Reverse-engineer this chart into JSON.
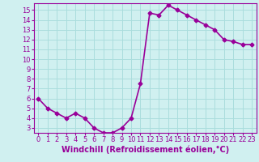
{
  "x": [
    0,
    1,
    2,
    3,
    4,
    5,
    6,
    7,
    8,
    9,
    10,
    11,
    12,
    13,
    14,
    15,
    16,
    17,
    18,
    19,
    20,
    21,
    22,
    23
  ],
  "y": [
    6.0,
    5.0,
    4.5,
    4.0,
    4.5,
    4.0,
    3.0,
    2.5,
    2.5,
    3.0,
    4.0,
    7.5,
    14.7,
    14.5,
    15.5,
    15.0,
    14.5,
    14.0,
    13.5,
    13.0,
    12.0,
    11.8,
    11.5,
    11.5
  ],
  "line_color": "#990099",
  "marker": "D",
  "marker_size": 2.5,
  "bg_color": "#d0f0f0",
  "grid_color": "#aadddd",
  "xlabel": "Windchill (Refroidissement éolien,°C)",
  "ylabel": "",
  "title": "",
  "xlim": [
    -0.5,
    23.5
  ],
  "ylim": [
    2.5,
    15.7
  ],
  "yticks": [
    3,
    4,
    5,
    6,
    7,
    8,
    9,
    10,
    11,
    12,
    13,
    14,
    15
  ],
  "xticks": [
    0,
    1,
    2,
    3,
    4,
    5,
    6,
    7,
    8,
    9,
    10,
    11,
    12,
    13,
    14,
    15,
    16,
    17,
    18,
    19,
    20,
    21,
    22,
    23
  ],
  "tick_color": "#990099",
  "spine_color": "#990099",
  "xlabel_color": "#990099",
  "xlabel_fontsize": 7.0,
  "tick_fontsize": 6.0,
  "line_width": 1.2
}
